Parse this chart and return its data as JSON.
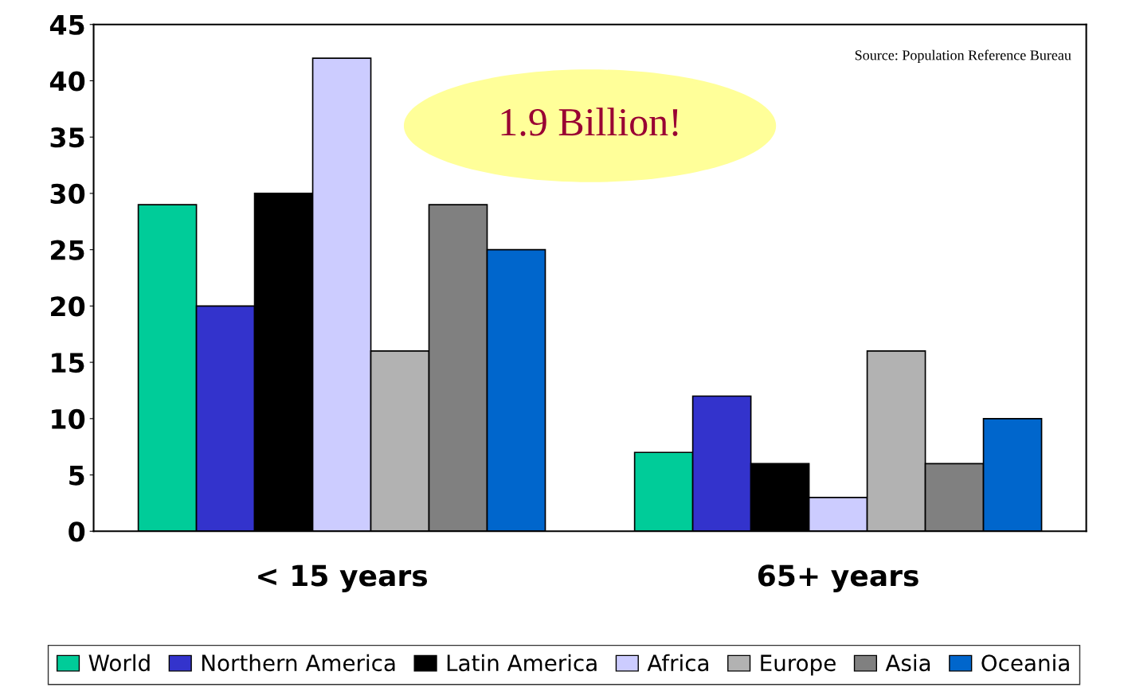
{
  "chart_data": {
    "type": "bar",
    "categories": [
      "< 15 years",
      "65+ years"
    ],
    "series": [
      {
        "name": "World",
        "color": "#00cc99",
        "values": [
          29,
          7
        ]
      },
      {
        "name": "Northern America",
        "color": "#3333cc",
        "values": [
          20,
          12
        ]
      },
      {
        "name": "Latin America",
        "color": "#000000",
        "values": [
          30,
          6
        ]
      },
      {
        "name": "Africa",
        "color": "#ccccff",
        "values": [
          42,
          3
        ]
      },
      {
        "name": "Europe",
        "color": "#b2b2b2",
        "values": [
          16,
          16
        ]
      },
      {
        "name": "Asia",
        "color": "#808080",
        "values": [
          29,
          6
        ]
      },
      {
        "name": "Oceania",
        "color": "#0066cc",
        "values": [
          25,
          10
        ]
      }
    ],
    "ylim": [
      0,
      45
    ],
    "yticks": [
      0,
      5,
      10,
      15,
      20,
      25,
      30,
      35,
      40,
      45
    ],
    "grid": false,
    "legend": "bottom",
    "annotations": [
      "Source: Population Reference Bureau",
      "1.9 Billion!"
    ]
  }
}
